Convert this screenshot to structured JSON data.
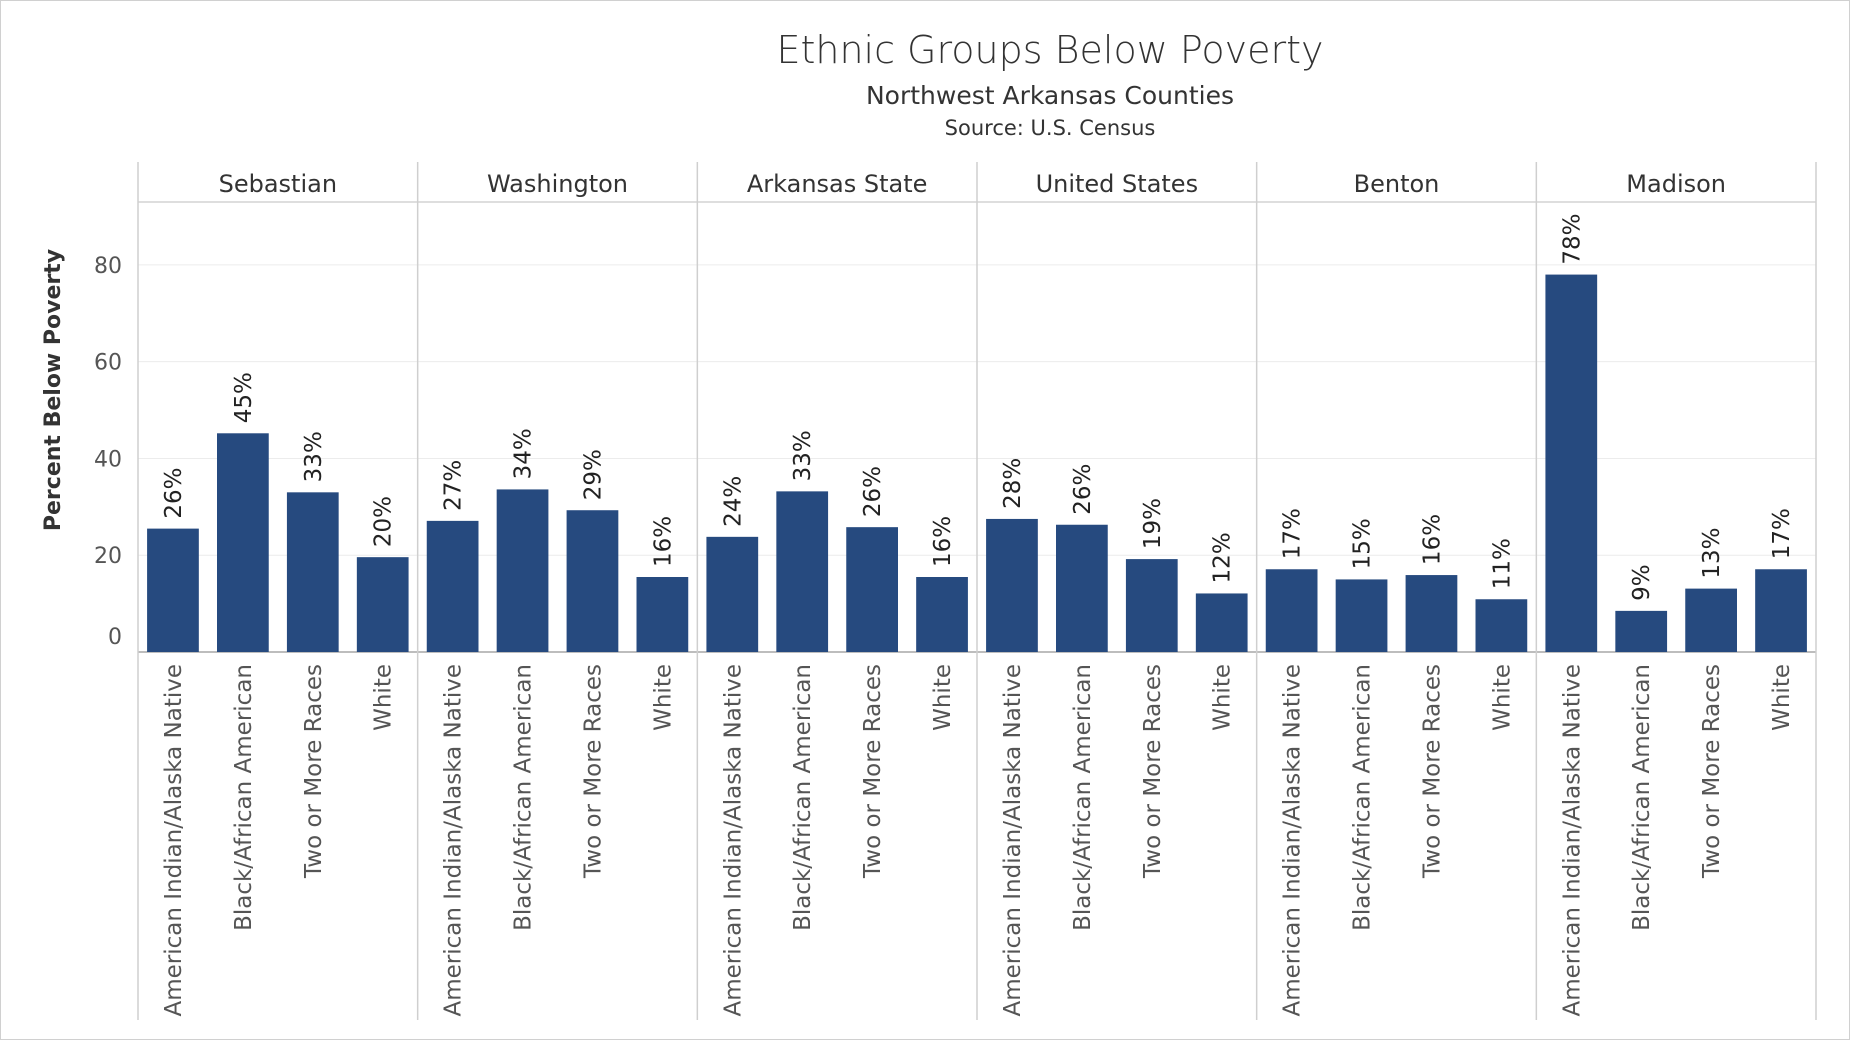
{
  "chart_data": {
    "type": "bar",
    "title": "Ethnic Groups Below Poverty",
    "subtitle": "Northwest Arkansas Counties",
    "source": "Source: U.S. Census",
    "ylabel": "Percent Below Poverty",
    "xlabel": "",
    "ylim": [
      0,
      93
    ],
    "yticks": [
      0,
      20,
      40,
      60,
      80
    ],
    "bar_color": "#264a7f",
    "categories": [
      "American Indian/Alaska Native",
      "Black/African American",
      "Two or More Races",
      "White"
    ],
    "panels": [
      {
        "name": "Sebastian",
        "values": [
          25.5,
          45.2,
          33,
          19.6
        ],
        "labels": [
          "26%",
          "45%",
          "33%",
          "20%"
        ]
      },
      {
        "name": "Washington",
        "values": [
          27.1,
          33.6,
          29.3,
          15.5
        ],
        "labels": [
          "27%",
          "34%",
          "29%",
          "16%"
        ]
      },
      {
        "name": "Arkansas State",
        "values": [
          23.8,
          33.2,
          25.8,
          15.5
        ],
        "labels": [
          "24%",
          "33%",
          "26%",
          "16%"
        ]
      },
      {
        "name": "United States",
        "values": [
          27.5,
          26.3,
          19.2,
          12.1
        ],
        "labels": [
          "28%",
          "26%",
          "19%",
          "12%"
        ]
      },
      {
        "name": "Benton",
        "values": [
          17.1,
          15,
          15.9,
          10.9
        ],
        "labels": [
          "17%",
          "15%",
          "16%",
          "11%"
        ]
      },
      {
        "name": "Madison",
        "values": [
          78,
          8.5,
          13.1,
          17.1
        ],
        "labels": [
          "78%",
          "9%",
          "13%",
          "17%"
        ]
      }
    ]
  }
}
